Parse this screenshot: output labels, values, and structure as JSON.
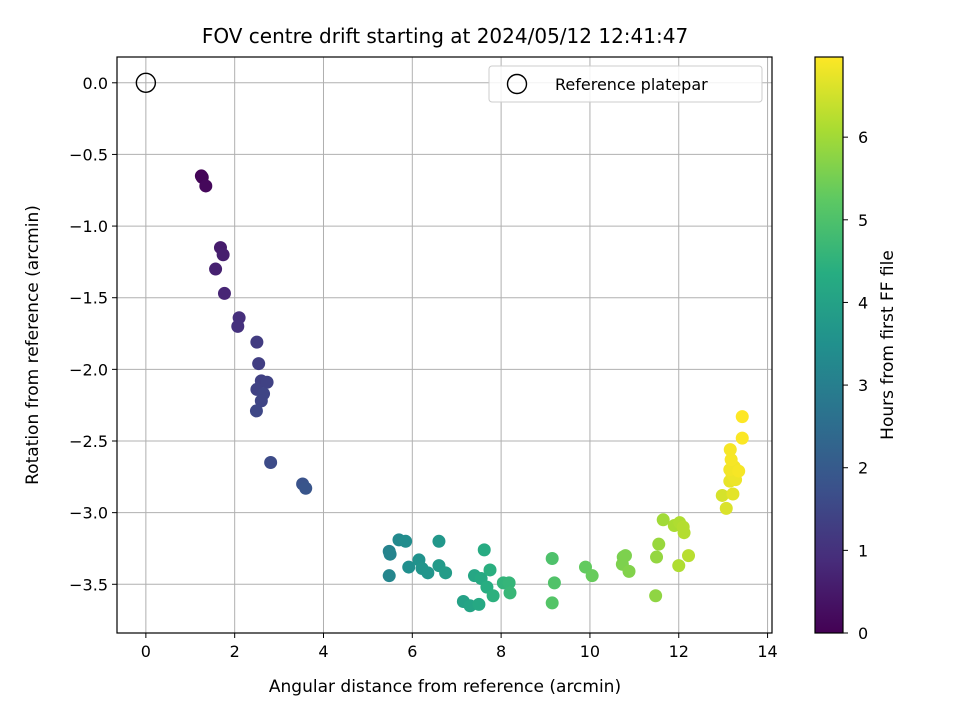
{
  "chart_data": {
    "type": "scatter",
    "title": "FOV centre drift starting at 2024/05/12 12:41:47",
    "xlabel": "Angular distance from reference (arcmin)",
    "ylabel": "Rotation from reference (arcmin)",
    "xlim": [
      -0.65,
      14.1
    ],
    "ylim": [
      -3.84,
      0.18
    ],
    "xticks": [
      0,
      2,
      4,
      6,
      8,
      10,
      12,
      14
    ],
    "xtick_labels": [
      "0",
      "2",
      "4",
      "6",
      "8",
      "10",
      "12",
      "14"
    ],
    "yticks": [
      0.0,
      -0.5,
      -1.0,
      -1.5,
      -2.0,
      -2.5,
      -3.0,
      -3.5
    ],
    "ytick_labels": [
      "0.0",
      "−0.5",
      "−1.0",
      "−1.5",
      "−2.0",
      "−2.5",
      "−3.0",
      "−3.5"
    ],
    "grid": true,
    "legend": {
      "position": "top-right",
      "label": "Reference platepar"
    },
    "reference_point": {
      "x": 0.0,
      "y": 0.0
    },
    "colorbar": {
      "label": "Hours from first FF file",
      "range": [
        0,
        6.97
      ],
      "ticks": [
        0,
        1,
        2,
        3,
        4,
        5,
        6
      ],
      "tick_labels": [
        "0",
        "1",
        "2",
        "3",
        "4",
        "5",
        "6"
      ],
      "colormap": "viridis"
    },
    "points": [
      {
        "x": 1.25,
        "y": -0.65,
        "c": 0.05
      },
      {
        "x": 1.27,
        "y": -0.66,
        "c": 0.1
      },
      {
        "x": 1.35,
        "y": -0.72,
        "c": 0.15
      },
      {
        "x": 1.68,
        "y": -1.15,
        "c": 0.55
      },
      {
        "x": 1.74,
        "y": -1.2,
        "c": 0.6
      },
      {
        "x": 1.57,
        "y": -1.3,
        "c": 0.65
      },
      {
        "x": 1.77,
        "y": -1.47,
        "c": 0.75
      },
      {
        "x": 2.1,
        "y": -1.64,
        "c": 0.95
      },
      {
        "x": 2.07,
        "y": -1.7,
        "c": 1.0
      },
      {
        "x": 2.5,
        "y": -1.81,
        "c": 1.25
      },
      {
        "x": 2.54,
        "y": -1.96,
        "c": 1.3
      },
      {
        "x": 2.6,
        "y": -2.08,
        "c": 1.35
      },
      {
        "x": 2.73,
        "y": -2.09,
        "c": 1.4
      },
      {
        "x": 2.5,
        "y": -2.14,
        "c": 1.4
      },
      {
        "x": 2.65,
        "y": -2.17,
        "c": 1.45
      },
      {
        "x": 2.6,
        "y": -2.22,
        "c": 1.45
      },
      {
        "x": 2.49,
        "y": -2.29,
        "c": 1.5
      },
      {
        "x": 2.81,
        "y": -2.65,
        "c": 1.6
      },
      {
        "x": 3.53,
        "y": -2.8,
        "c": 1.8
      },
      {
        "x": 3.6,
        "y": -2.83,
        "c": 1.85
      },
      {
        "x": 5.48,
        "y": -3.27,
        "c": 3.1
      },
      {
        "x": 5.5,
        "y": -3.29,
        "c": 3.15
      },
      {
        "x": 5.48,
        "y": -3.44,
        "c": 3.2
      },
      {
        "x": 5.7,
        "y": -3.19,
        "c": 3.3
      },
      {
        "x": 5.85,
        "y": -3.2,
        "c": 3.4
      },
      {
        "x": 5.92,
        "y": -3.38,
        "c": 3.45
      },
      {
        "x": 6.15,
        "y": -3.33,
        "c": 3.55
      },
      {
        "x": 6.22,
        "y": -3.39,
        "c": 3.6
      },
      {
        "x": 6.35,
        "y": -3.42,
        "c": 3.65
      },
      {
        "x": 6.6,
        "y": -3.2,
        "c": 3.7
      },
      {
        "x": 6.6,
        "y": -3.37,
        "c": 3.8
      },
      {
        "x": 6.75,
        "y": -3.42,
        "c": 3.85
      },
      {
        "x": 7.15,
        "y": -3.62,
        "c": 4.0
      },
      {
        "x": 7.3,
        "y": -3.65,
        "c": 4.1
      },
      {
        "x": 7.4,
        "y": -3.44,
        "c": 4.15
      },
      {
        "x": 7.5,
        "y": -3.64,
        "c": 4.2
      },
      {
        "x": 7.55,
        "y": -3.46,
        "c": 4.25
      },
      {
        "x": 7.62,
        "y": -3.26,
        "c": 4.3
      },
      {
        "x": 7.68,
        "y": -3.52,
        "c": 4.35
      },
      {
        "x": 7.75,
        "y": -3.4,
        "c": 4.4
      },
      {
        "x": 7.82,
        "y": -3.58,
        "c": 4.45
      },
      {
        "x": 8.05,
        "y": -3.49,
        "c": 4.55
      },
      {
        "x": 8.18,
        "y": -3.49,
        "c": 4.6
      },
      {
        "x": 8.2,
        "y": -3.56,
        "c": 4.65
      },
      {
        "x": 9.15,
        "y": -3.32,
        "c": 5.0
      },
      {
        "x": 9.2,
        "y": -3.49,
        "c": 5.05
      },
      {
        "x": 9.15,
        "y": -3.63,
        "c": 5.1
      },
      {
        "x": 9.9,
        "y": -3.38,
        "c": 5.3
      },
      {
        "x": 10.05,
        "y": -3.44,
        "c": 5.35
      },
      {
        "x": 10.75,
        "y": -3.31,
        "c": 5.55
      },
      {
        "x": 10.8,
        "y": -3.3,
        "c": 5.6
      },
      {
        "x": 10.73,
        "y": -3.36,
        "c": 5.6
      },
      {
        "x": 10.88,
        "y": -3.41,
        "c": 5.65
      },
      {
        "x": 11.5,
        "y": -3.31,
        "c": 5.85
      },
      {
        "x": 11.55,
        "y": -3.22,
        "c": 5.9
      },
      {
        "x": 11.48,
        "y": -3.58,
        "c": 5.8
      },
      {
        "x": 11.65,
        "y": -3.05,
        "c": 6.0
      },
      {
        "x": 11.9,
        "y": -3.09,
        "c": 6.1
      },
      {
        "x": 12.02,
        "y": -3.07,
        "c": 6.15
      },
      {
        "x": 12.1,
        "y": -3.1,
        "c": 6.2
      },
      {
        "x": 12.12,
        "y": -3.14,
        "c": 6.2
      },
      {
        "x": 12.0,
        "y": -3.37,
        "c": 6.15
      },
      {
        "x": 12.22,
        "y": -3.3,
        "c": 6.25
      },
      {
        "x": 12.98,
        "y": -2.88,
        "c": 6.55
      },
      {
        "x": 13.07,
        "y": -2.97,
        "c": 6.6
      },
      {
        "x": 13.22,
        "y": -2.87,
        "c": 6.7
      },
      {
        "x": 13.15,
        "y": -2.78,
        "c": 6.75
      },
      {
        "x": 13.28,
        "y": -2.77,
        "c": 6.8
      },
      {
        "x": 13.2,
        "y": -2.73,
        "c": 6.8
      },
      {
        "x": 13.15,
        "y": -2.7,
        "c": 6.85
      },
      {
        "x": 13.25,
        "y": -2.68,
        "c": 6.85
      },
      {
        "x": 13.35,
        "y": -2.71,
        "c": 6.9
      },
      {
        "x": 13.18,
        "y": -2.63,
        "c": 6.9
      },
      {
        "x": 13.16,
        "y": -2.56,
        "c": 6.9
      },
      {
        "x": 13.43,
        "y": -2.48,
        "c": 6.95
      },
      {
        "x": 13.43,
        "y": -2.33,
        "c": 6.97
      }
    ]
  }
}
